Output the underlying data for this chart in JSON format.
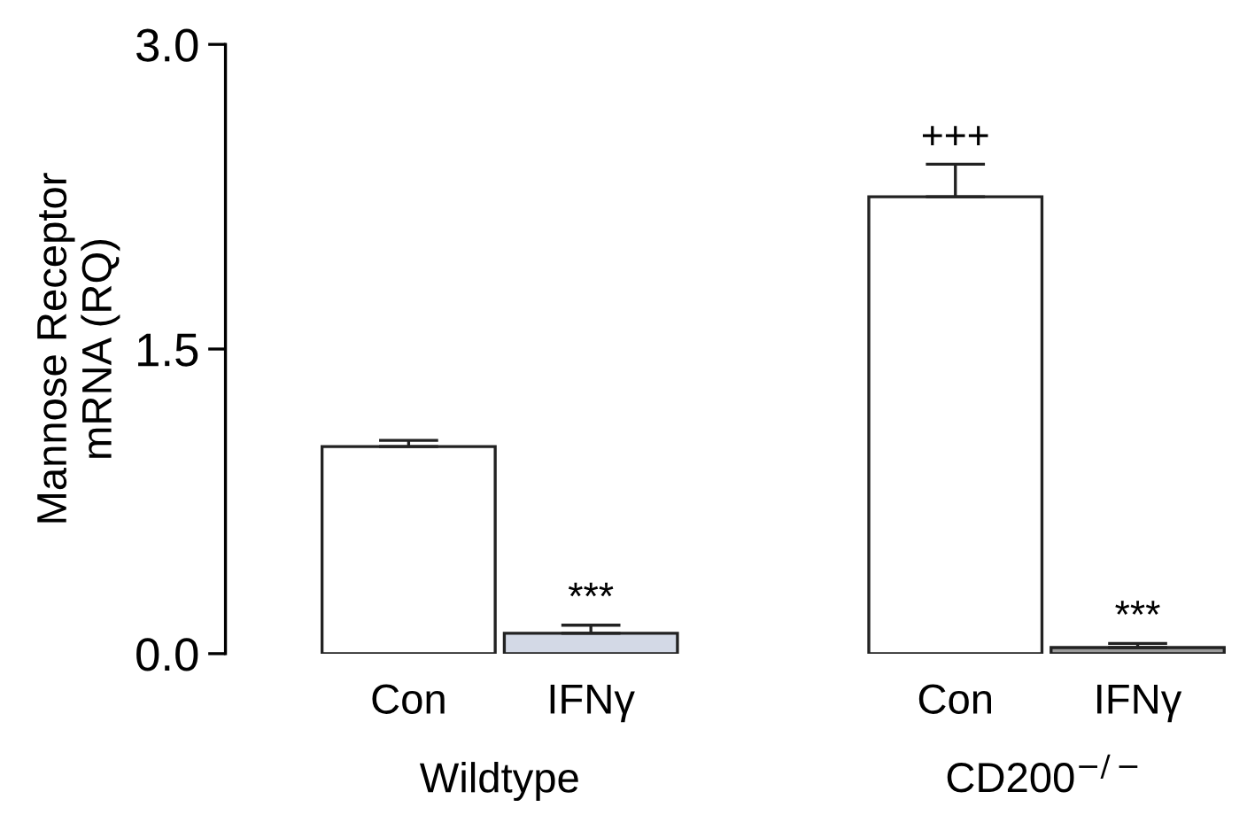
{
  "chart_data": {
    "type": "bar",
    "ylabel": "Mannose Receptor\nmRNA (RQ)",
    "categories": [
      "Con",
      "IFNγ",
      null,
      "Con",
      "IFNγ"
    ],
    "values": [
      1.02,
      0.1,
      null,
      2.25,
      0.03
    ],
    "errors": [
      0.03,
      0.04,
      null,
      0.16,
      0.02
    ],
    "colors": [
      "#ffffff",
      "#d3d9e6",
      "#ffffff",
      "#ffffff",
      "#9a9a9a"
    ],
    "value_labels": [
      null,
      "***",
      null,
      "+++",
      "***"
    ],
    "annotations": [
      "Wildtype",
      "CD200$^{−/−}$"
    ],
    "ylim": [
      0,
      3.0
    ],
    "yticks": [
      {
        "value": 0,
        "label": "0.0"
      },
      {
        "value": 1.5,
        "label": "1.5"
      },
      {
        "value": 3.0,
        "label": "3.0"
      }
    ],
    "grid": false,
    "legend": false
  }
}
